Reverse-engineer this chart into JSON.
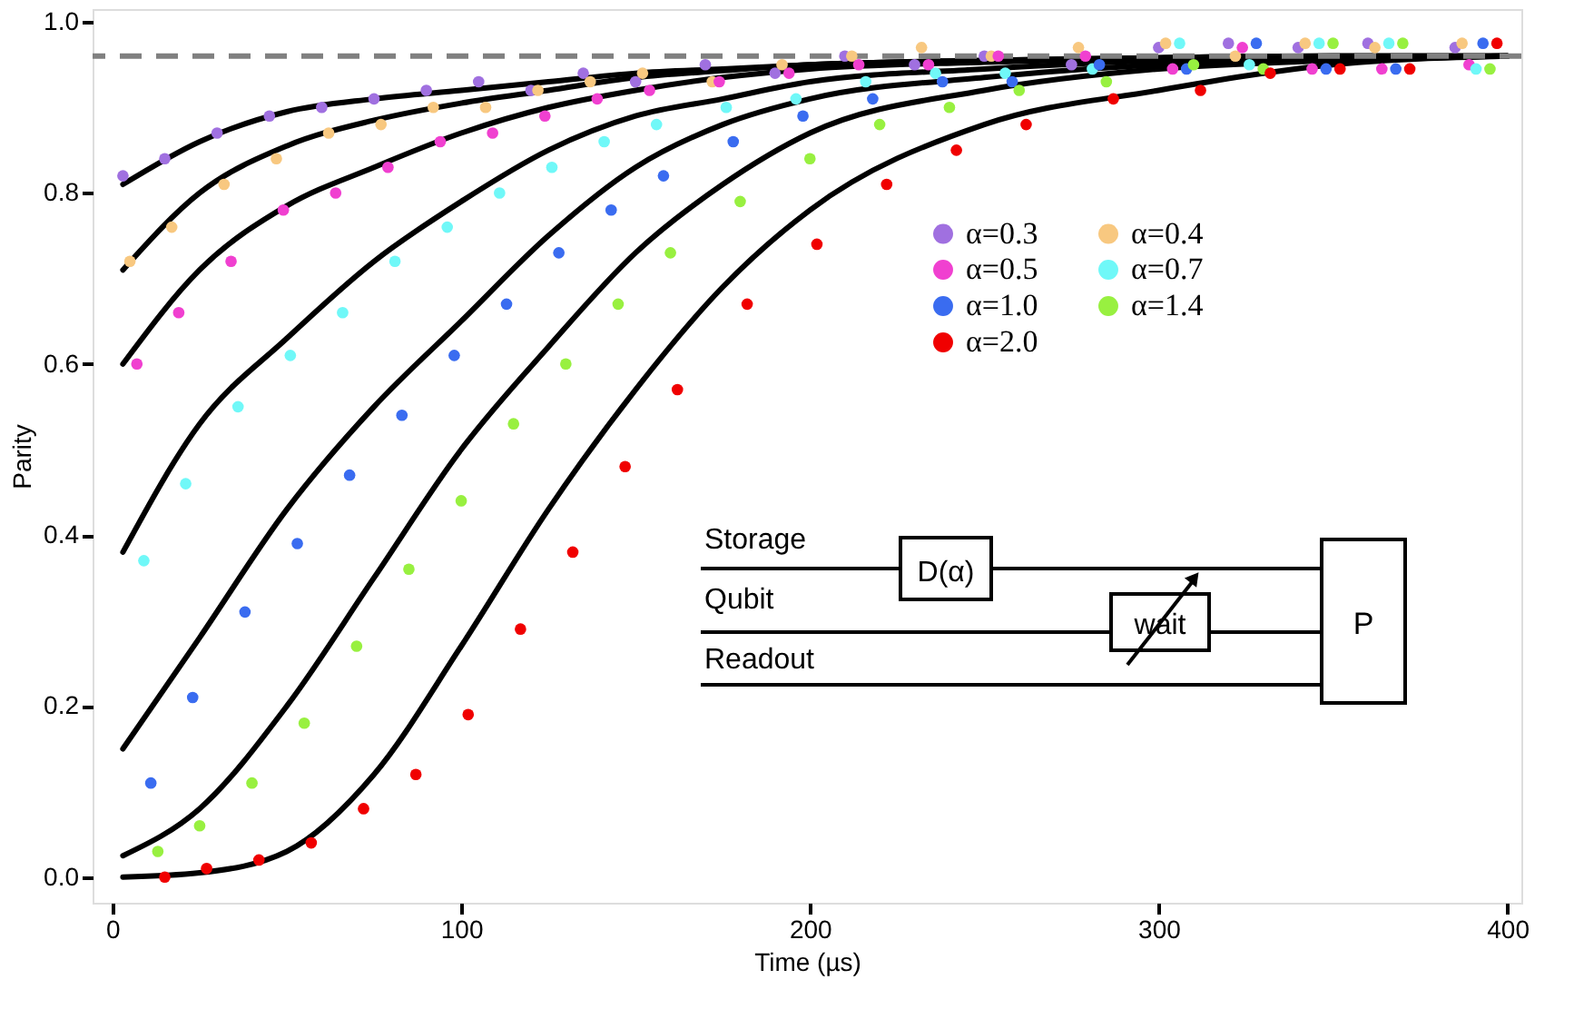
{
  "chart_data": {
    "type": "scatter",
    "xlabel": "Time (µs)",
    "ylabel": "Parity",
    "xlim": [
      -5.7,
      404
    ],
    "ylim": [
      -0.03,
      1.015
    ],
    "xticks": [
      0,
      100,
      200,
      300,
      400
    ],
    "yticks": [
      {
        "value": 0,
        "label": "0.0"
      },
      0.2,
      0.4,
      0.6,
      0.8,
      {
        "value": 1,
        "label": "1.0"
      }
    ],
    "grid": false,
    "legend": "right",
    "marker": "circle",
    "series": [
      {
        "name": "α=0.3",
        "color": "#a070e0",
        "x": [
          3,
          15,
          30,
          45,
          60,
          75,
          90,
          105,
          120,
          135,
          150,
          170,
          190,
          210,
          230,
          250,
          275,
          300,
          320,
          340,
          360,
          385
        ],
        "values": [
          0.82,
          0.84,
          0.87,
          0.89,
          0.9,
          0.91,
          0.92,
          0.93,
          0.92,
          0.94,
          0.93,
          0.95,
          0.94,
          0.96,
          0.95,
          0.96,
          0.95,
          0.97,
          0.975,
          0.97,
          0.975,
          0.97
        ]
      },
      {
        "name": "α=0.4",
        "color": "#f8c880",
        "x": [
          5,
          17,
          32,
          47,
          62,
          77,
          92,
          107,
          122,
          137,
          152,
          172,
          192,
          212,
          232,
          252,
          277,
          302,
          322,
          342,
          362,
          387
        ],
        "values": [
          0.72,
          0.76,
          0.81,
          0.84,
          0.87,
          0.88,
          0.9,
          0.9,
          0.92,
          0.93,
          0.94,
          0.93,
          0.95,
          0.96,
          0.97,
          0.96,
          0.97,
          0.975,
          0.96,
          0.975,
          0.97,
          0.975
        ]
      },
      {
        "name": "α=0.5",
        "color": "#f040d0",
        "x": [
          7,
          19,
          34,
          49,
          64,
          79,
          94,
          109,
          124,
          139,
          154,
          174,
          194,
          214,
          234,
          254,
          279,
          304,
          324,
          344,
          364,
          389
        ],
        "values": [
          0.6,
          0.66,
          0.72,
          0.78,
          0.8,
          0.83,
          0.86,
          0.87,
          0.89,
          0.91,
          0.92,
          0.93,
          0.94,
          0.95,
          0.95,
          0.96,
          0.96,
          0.945,
          0.97,
          0.945,
          0.945,
          0.95
        ]
      },
      {
        "name": "α=0.7",
        "color": "#70f8f8",
        "x": [
          9,
          21,
          36,
          51,
          66,
          81,
          96,
          111,
          126,
          141,
          156,
          176,
          196,
          216,
          236,
          256,
          281,
          306,
          326,
          346,
          366,
          391
        ],
        "values": [
          0.37,
          0.46,
          0.55,
          0.61,
          0.66,
          0.72,
          0.76,
          0.8,
          0.83,
          0.86,
          0.88,
          0.9,
          0.91,
          0.93,
          0.94,
          0.94,
          0.945,
          0.975,
          0.95,
          0.975,
          0.975,
          0.945
        ]
      },
      {
        "name": "α=1.0",
        "color": "#3a6cf0",
        "x": [
          11,
          23,
          38,
          53,
          68,
          83,
          98,
          113,
          128,
          143,
          158,
          178,
          198,
          218,
          238,
          258,
          283,
          308,
          328,
          348,
          368,
          393
        ],
        "values": [
          0.11,
          0.21,
          0.31,
          0.39,
          0.47,
          0.54,
          0.61,
          0.67,
          0.73,
          0.78,
          0.82,
          0.86,
          0.89,
          0.91,
          0.93,
          0.93,
          0.95,
          0.945,
          0.975,
          0.945,
          0.945,
          0.975
        ]
      },
      {
        "name": "α=1.4",
        "color": "#98f040",
        "x": [
          13,
          25,
          40,
          55,
          70,
          85,
          100,
          115,
          130,
          145,
          160,
          180,
          200,
          220,
          240,
          260,
          285,
          310,
          330,
          350,
          370,
          395
        ],
        "values": [
          0.03,
          0.06,
          0.11,
          0.18,
          0.27,
          0.36,
          0.44,
          0.53,
          0.6,
          0.67,
          0.73,
          0.79,
          0.84,
          0.88,
          0.9,
          0.92,
          0.93,
          0.95,
          0.945,
          0.975,
          0.975,
          0.945
        ]
      },
      {
        "name": "α=2.0",
        "color": "#f00000",
        "x": [
          15,
          27,
          42,
          57,
          72,
          87,
          102,
          117,
          132,
          147,
          162,
          182,
          202,
          222,
          242,
          262,
          287,
          312,
          332,
          352,
          372,
          397
        ],
        "values": [
          0.0,
          0.01,
          0.02,
          0.04,
          0.08,
          0.12,
          0.19,
          0.29,
          0.38,
          0.48,
          0.57,
          0.67,
          0.74,
          0.81,
          0.85,
          0.88,
          0.91,
          0.92,
          0.94,
          0.945,
          0.945,
          0.975
        ]
      },
      {
        "type": "line",
        "marker": "none",
        "color": "#000000",
        "x": [
          3,
          25,
          50,
          75,
          100,
          125,
          150,
          175,
          200,
          250,
          300,
          350,
          400
        ],
        "values": [
          0.81,
          0.86,
          0.895,
          0.91,
          0.92,
          0.93,
          0.94,
          0.945,
          0.95,
          0.955,
          0.958,
          0.96,
          0.96
        ]
      },
      {
        "type": "line",
        "marker": "none",
        "color": "#000000",
        "x": [
          3,
          25,
          50,
          75,
          100,
          125,
          150,
          175,
          200,
          250,
          300,
          350,
          400
        ],
        "values": [
          0.71,
          0.8,
          0.855,
          0.885,
          0.905,
          0.92,
          0.935,
          0.943,
          0.95,
          0.955,
          0.958,
          0.96,
          0.96
        ]
      },
      {
        "type": "line",
        "marker": "none",
        "color": "#000000",
        "x": [
          3,
          25,
          50,
          75,
          100,
          125,
          150,
          175,
          200,
          250,
          300,
          350,
          400
        ],
        "values": [
          0.6,
          0.71,
          0.785,
          0.83,
          0.87,
          0.9,
          0.92,
          0.935,
          0.945,
          0.953,
          0.958,
          0.96,
          0.96
        ]
      },
      {
        "type": "line",
        "marker": "none",
        "color": "#000000",
        "x": [
          3,
          25,
          50,
          75,
          100,
          125,
          150,
          175,
          200,
          250,
          300,
          350,
          400
        ],
        "values": [
          0.38,
          0.53,
          0.63,
          0.72,
          0.79,
          0.85,
          0.89,
          0.91,
          0.93,
          0.945,
          0.955,
          0.958,
          0.96
        ]
      },
      {
        "type": "line",
        "marker": "none",
        "color": "#000000",
        "x": [
          3,
          25,
          50,
          75,
          100,
          125,
          150,
          175,
          200,
          250,
          300,
          350,
          400
        ],
        "values": [
          0.15,
          0.28,
          0.43,
          0.55,
          0.65,
          0.75,
          0.83,
          0.88,
          0.91,
          0.935,
          0.95,
          0.957,
          0.96
        ]
      },
      {
        "type": "line",
        "marker": "none",
        "color": "#000000",
        "x": [
          3,
          25,
          50,
          75,
          100,
          125,
          150,
          175,
          200,
          250,
          300,
          350,
          400
        ],
        "values": [
          0.025,
          0.08,
          0.2,
          0.35,
          0.5,
          0.62,
          0.73,
          0.81,
          0.87,
          0.92,
          0.945,
          0.955,
          0.96
        ]
      },
      {
        "type": "line",
        "marker": "none",
        "color": "#000000",
        "x": [
          3,
          25,
          50,
          75,
          100,
          125,
          150,
          175,
          200,
          250,
          300,
          350,
          400
        ],
        "values": [
          0.0,
          0.005,
          0.03,
          0.12,
          0.27,
          0.43,
          0.57,
          0.69,
          0.78,
          0.88,
          0.92,
          0.95,
          0.96
        ]
      }
    ],
    "ref_lines": [
      {
        "axis": "y",
        "value": 0.96,
        "color": "#808080",
        "line_style": "dashed"
      }
    ],
    "annotations": [
      "Storage",
      "D(α)",
      "Qubit",
      "wait",
      "Readout",
      "P"
    ]
  }
}
